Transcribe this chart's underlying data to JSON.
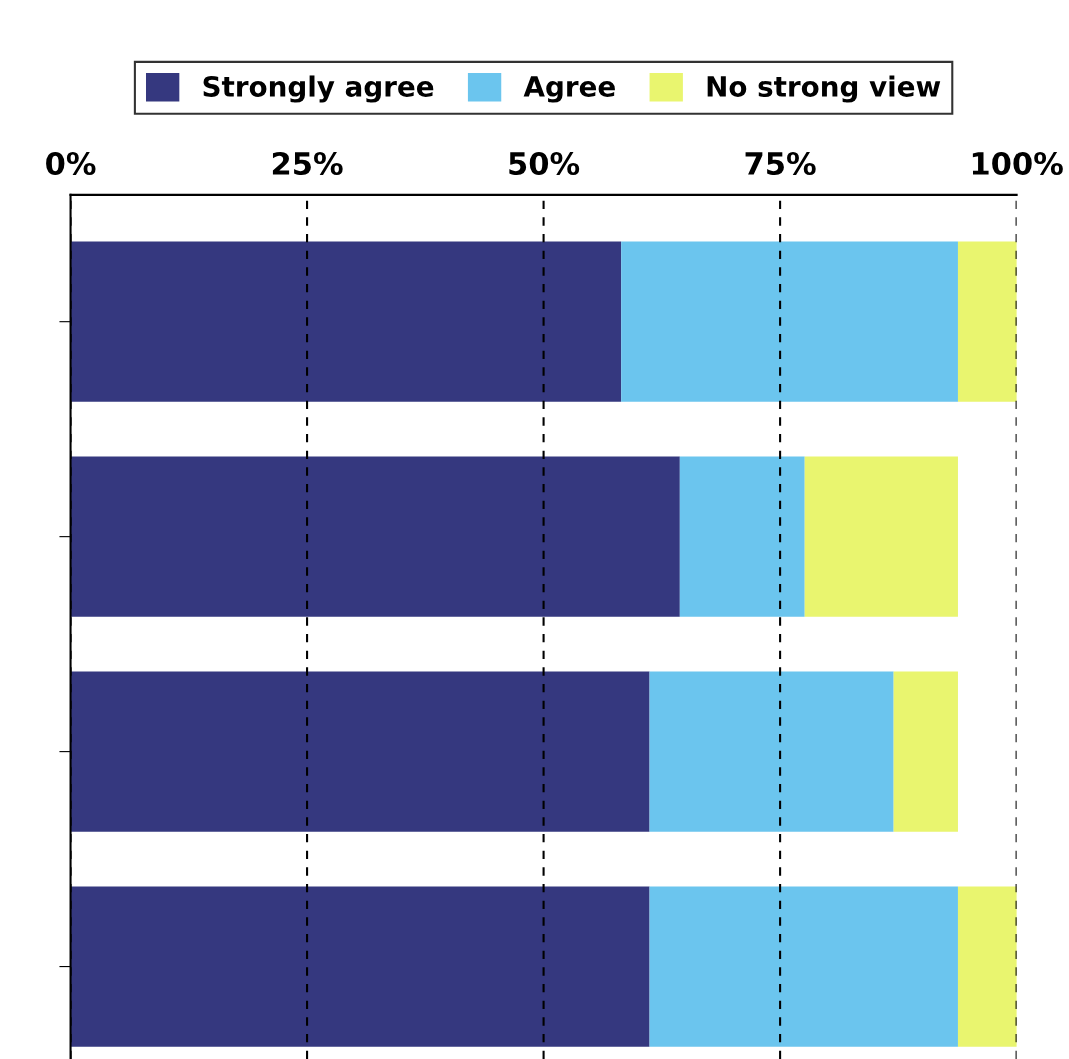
{
  "chart_data": {
    "type": "bar",
    "orientation": "horizontal",
    "stacked": true,
    "categories": [
      null,
      null,
      null,
      null
    ],
    "series": [
      {
        "name": "Strongly agree",
        "color": "#35387f",
        "values": [
          58.2,
          64.4,
          61.2,
          61.2
        ]
      },
      {
        "name": "Agree",
        "color": "#6bc5ee",
        "values": [
          35.6,
          13.2,
          25.8,
          32.6
        ]
      },
      {
        "name": "No strong view",
        "color": "#e9f56f",
        "values": [
          6.5,
          16.2,
          6.8,
          6.5
        ]
      }
    ],
    "xlim": [
      0,
      100
    ],
    "xticks": [
      {
        "value": 0,
        "label": "0%"
      },
      {
        "value": 25,
        "label": "25%"
      },
      {
        "value": 50,
        "label": "50%"
      },
      {
        "value": 75,
        "label": "75%"
      },
      {
        "value": 100,
        "label": "100%"
      }
    ],
    "grid": "x",
    "legend": "top"
  }
}
